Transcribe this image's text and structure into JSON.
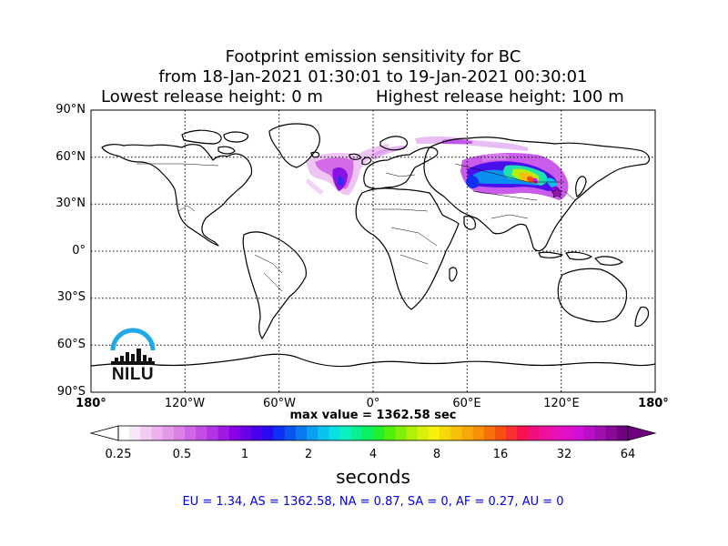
{
  "title": {
    "line1": "Footprint emission sensitivity for BC",
    "line2": "from 18-Jan-2021 01:30:01 to 19-Jan-2021 00:30:01",
    "line3_left": "Lowest release height: 0 m",
    "line3_right": "Highest release height: 100 m"
  },
  "map": {
    "lat_labels": [
      "90°N",
      "60°N",
      "30°N",
      "0°",
      "30°S",
      "60°S",
      "90°S"
    ],
    "lon_labels": [
      "180°",
      "120°W",
      "60°W",
      "0°",
      "60°E",
      "120°E",
      "180°"
    ],
    "grid_style": "dotted",
    "projection": "cylindrical equidistant",
    "logo_text": "NILU",
    "colors": {
      "logo_arc": "#1ea9e8",
      "coast": "#000000",
      "border": "#000000"
    }
  },
  "max_value": "max value = 1362.58 sec",
  "colorbar": {
    "ticks": [
      "0.25",
      "0.5",
      "1",
      "2",
      "4",
      "8",
      "16",
      "32",
      "64"
    ],
    "label": "seconds",
    "colors": [
      "#ffffff",
      "#f8e6f8",
      "#f2ccf3",
      "#ebb2ee",
      "#e499ea",
      "#dc80e8",
      "#d066e8",
      "#c24ce6",
      "#b233e4",
      "#a01ae4",
      "#8a00e6",
      "#6a00e8",
      "#4a00ec",
      "#2a0af0",
      "#1030f4",
      "#0a55f0",
      "#0a7af0",
      "#0aa0f0",
      "#0ac2ee",
      "#0ae0e0",
      "#0af0c0",
      "#0af090",
      "#0af060",
      "#20f030",
      "#50f00a",
      "#80f00a",
      "#b0f00a",
      "#d8f00a",
      "#f8f00a",
      "#f8d80a",
      "#f8c00a",
      "#f8a80a",
      "#f8900a",
      "#f8700a",
      "#f85010",
      "#f83030",
      "#f81050",
      "#f0107a",
      "#f010a0",
      "#e810b8",
      "#e010c8",
      "#d010d8",
      "#b810c8",
      "#a010b0",
      "#880898",
      "#700080"
    ]
  },
  "regions": "EU = 1.34,  AS = 1362.58,  NA = 0.87,  SA = 0,  AF = 0.27,  AU = 0"
}
